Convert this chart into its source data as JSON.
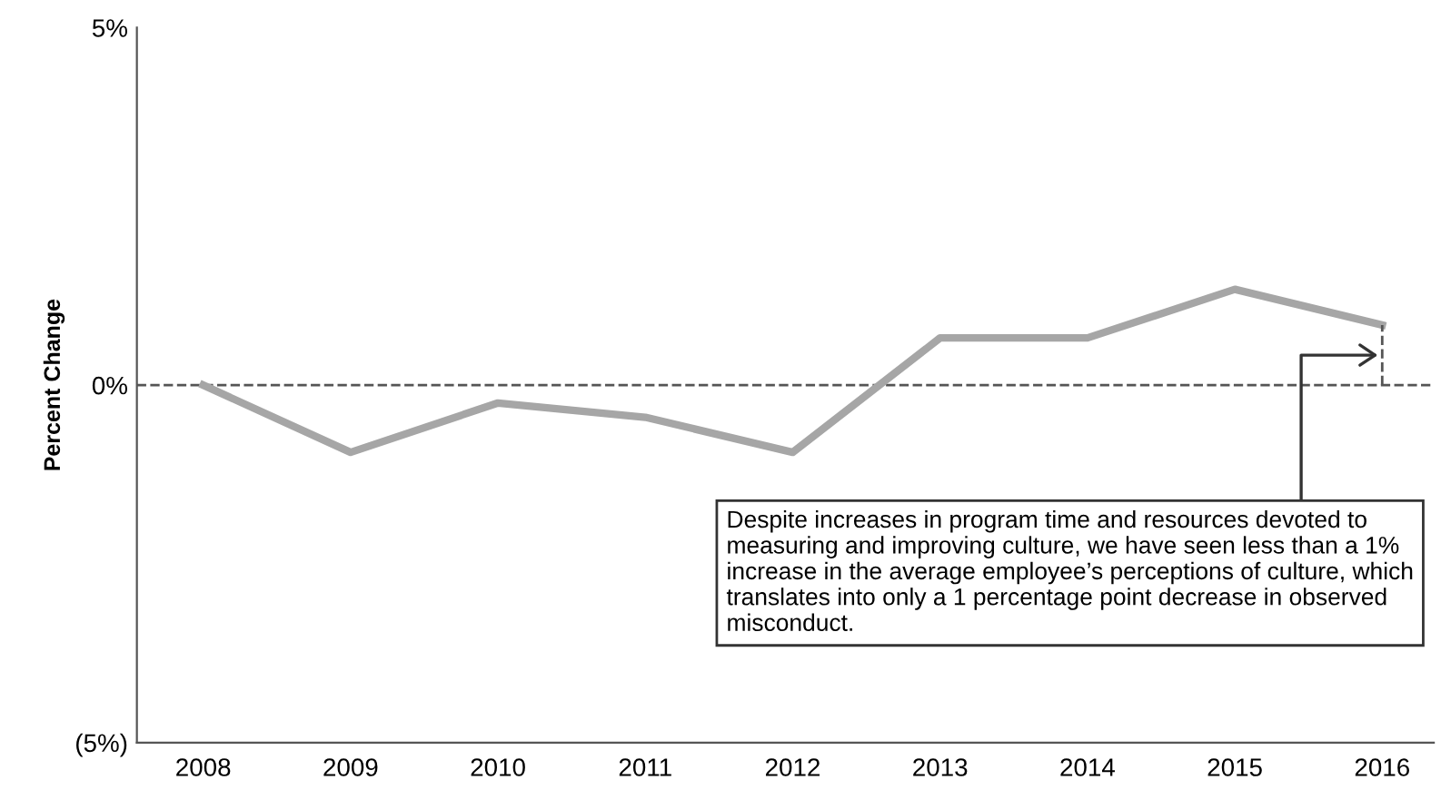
{
  "chart_data": {
    "type": "line",
    "ylabel": "Percent Change",
    "categories": [
      "2008",
      "2009",
      "2010",
      "2011",
      "2012",
      "2013",
      "2014",
      "2015",
      "2016"
    ],
    "series": [
      {
        "color": "#a6a6a6",
        "values": [
          0,
          -0.94,
          -0.25,
          -0.45,
          -0.94,
          0.66,
          0.66,
          1.34,
          0.84
        ]
      }
    ],
    "ylim": [
      -5,
      5
    ],
    "yticks": [
      {
        "value": 5,
        "label": "5%"
      },
      {
        "value": 0,
        "label": "0%"
      },
      {
        "value": -5,
        "label": "(5%)"
      }
    ],
    "ref_lines": [
      {
        "axis": "y",
        "value": 0,
        "color": "#555555",
        "line_style": "dashed"
      }
    ],
    "annotations": [
      "Despite increases in program time and resources devoted to measuring and improving culture, we have seen less than a 1% increase in the average employee’s perceptions of culture, which translates into only a 1 percentage point decrease in observed misconduct."
    ],
    "grid": false,
    "legend": false,
    "marker": "none",
    "line_style": "solid"
  }
}
